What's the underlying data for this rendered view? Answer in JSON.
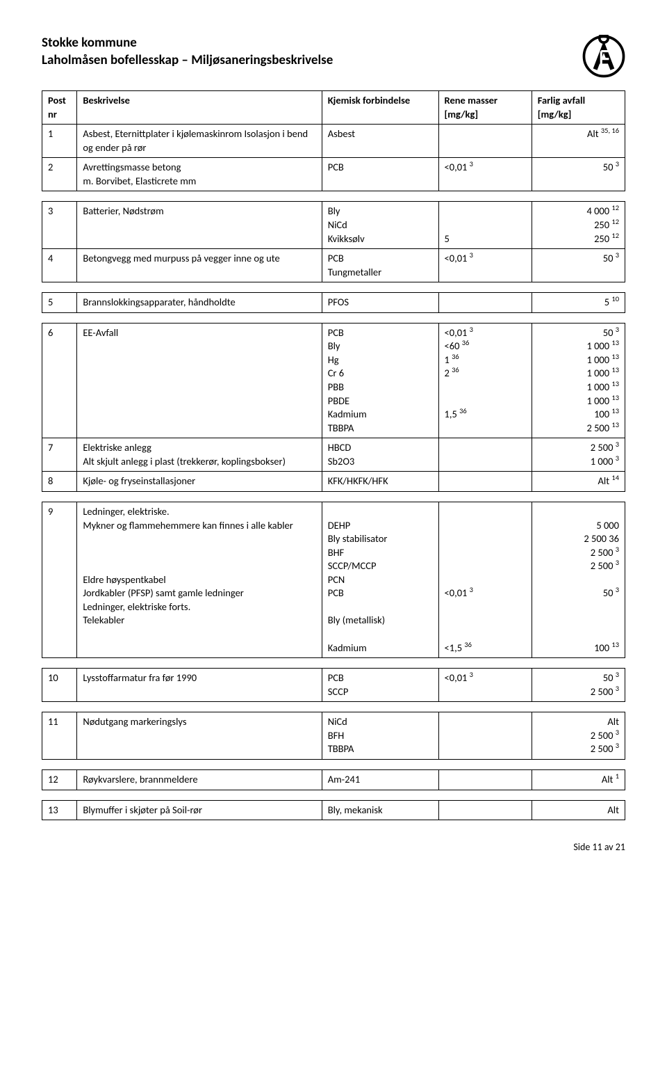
{
  "header": {
    "line1": "Stokke kommune",
    "line2": "Laholmåsen bofellesskap – Miljøsaneringsbeskrivelse"
  },
  "columns": {
    "c1": "Post nr",
    "c2": "Beskrivelse",
    "c3": "Kjemisk forbindelse",
    "c4": "Rene masser [mg/kg]",
    "c5": "Farlig avfall [mg/kg]"
  },
  "rows": {
    "r1": {
      "nr": "1",
      "desc": "Asbest, Eternittplater i kjølemaskinrom Isolasjon i bend og ender på rør",
      "chem": "Asbest",
      "farlig_html": "Alt <sup>35, 16</sup>"
    },
    "r2": {
      "nr": "2",
      "desc_html": "Avrettingsmasse betong<br>m. Borvibet, Elasticrete mm",
      "chem": "PCB",
      "rene_html": "&lt;0,01 <sup>3</sup>",
      "farlig_html": "50 <sup>3</sup>"
    },
    "r3": {
      "nr": "3",
      "desc": "Batterier, Nødstrøm",
      "chem_html": "Bly<br>NiCd<br>Kvikksølv",
      "rene_html": "<br><br>5",
      "farlig_html": "4 000 <sup>12</sup><br>250 <sup>12</sup><br>250 <sup>12</sup>"
    },
    "r4": {
      "nr": "4",
      "desc": "Betongvegg med murpuss på vegger inne og ute",
      "chem_html": "PCB<br>Tungmetaller",
      "rene_html": "&lt;0,01 <sup>3</sup>",
      "farlig_html": "50 <sup>3</sup>"
    },
    "r5": {
      "nr": "5",
      "desc": "Brannslokkingsapparater, håndholdte",
      "chem": "PFOS",
      "farlig_html": "5 <sup>10</sup>"
    },
    "r6": {
      "nr": "6",
      "desc": "EE-Avfall",
      "chem_html": "PCB<br>Bly<br>Hg<br>Cr 6<br>PBB<br>PBDE<br>Kadmium<br>TBBPA",
      "rene_html": "&lt;0,01 <sup>3</sup><br>&lt;60 <sup>36</sup><br>1 <sup>36</sup><br>2 <sup>36</sup><br><br><br>1,5 <sup>36</sup>",
      "farlig_html": "50 <sup>3</sup><br>1 000 <sup>13</sup><br>1 000 <sup>13</sup><br>1 000 <sup>13</sup><br>1 000 <sup>13</sup><br>1 000 <sup>13</sup><br>100 <sup>13</sup><br>2 500 <sup>13</sup>"
    },
    "r7": {
      "nr": "7",
      "desc_html": "Elektriske anlegg<br>Alt skjult anlegg i plast (trekkerør, koplingsbokser)",
      "chem_html": "HBCD<br>Sb2O3",
      "farlig_html": "2 500 <sup>3</sup><br>1 000 <sup>3</sup>"
    },
    "r8": {
      "nr": "8",
      "desc": "Kjøle- og fryseinstallasjoner",
      "chem": "KFK/HKFK/HFK",
      "farlig_html": "Alt <sup>14</sup>"
    },
    "r9": {
      "nr": "9",
      "desc_html": "Ledninger, elektriske.<br>Mykner og flammehemmere kan finnes i alle kabler<br><br><br><br>Eldre høyspentkabel<br>Jordkabler (PFSP) samt gamle ledninger<br>Ledninger, elektriske forts.<br>Telekabler",
      "chem_html": "<br>DEHP<br>Bly stabilisator<br>BHF<br>SCCP/MCCP<br>PCN<br>PCB<br><br>Bly (metallisk)<br><br>Kadmium",
      "rene_html": "<br><br><br><br><br><br>&lt;0,01 <sup>3</sup><br><br><br><br>&lt;1,5 <sup>36</sup>",
      "farlig_html": "<br>5 000<br>2 500 36<br>2 500 <sup>3</sup><br>2 500 <sup>3</sup><br><br>50 <sup>3</sup><br><br><br><br>100 <sup>13</sup>"
    },
    "r10": {
      "nr": "10",
      "desc": "Lysstoffarmatur fra før 1990",
      "chem_html": "PCB<br>SCCP",
      "rene_html": "&lt;0,01 <sup>3</sup>",
      "farlig_html": "50 <sup>3</sup><br>2 500 <sup>3</sup>"
    },
    "r11": {
      "nr": "11",
      "desc": "Nødutgang markeringslys",
      "chem_html": "NiCd<br>BFH<br>TBBPA",
      "farlig_html": "Alt<br>2 500 <sup>3</sup><br>2 500 <sup>3</sup>"
    },
    "r12": {
      "nr": "12",
      "desc": "Røykvarslere, brannmeldere",
      "chem": "Am-241",
      "farlig_html": "Alt <sup>1</sup>"
    },
    "r13": {
      "nr": "13",
      "desc": "Blymuffer i skjøter på Soil-rør",
      "chem": "Bly, mekanisk",
      "farlig": "Alt"
    }
  },
  "footer": "Side 11 av 21"
}
